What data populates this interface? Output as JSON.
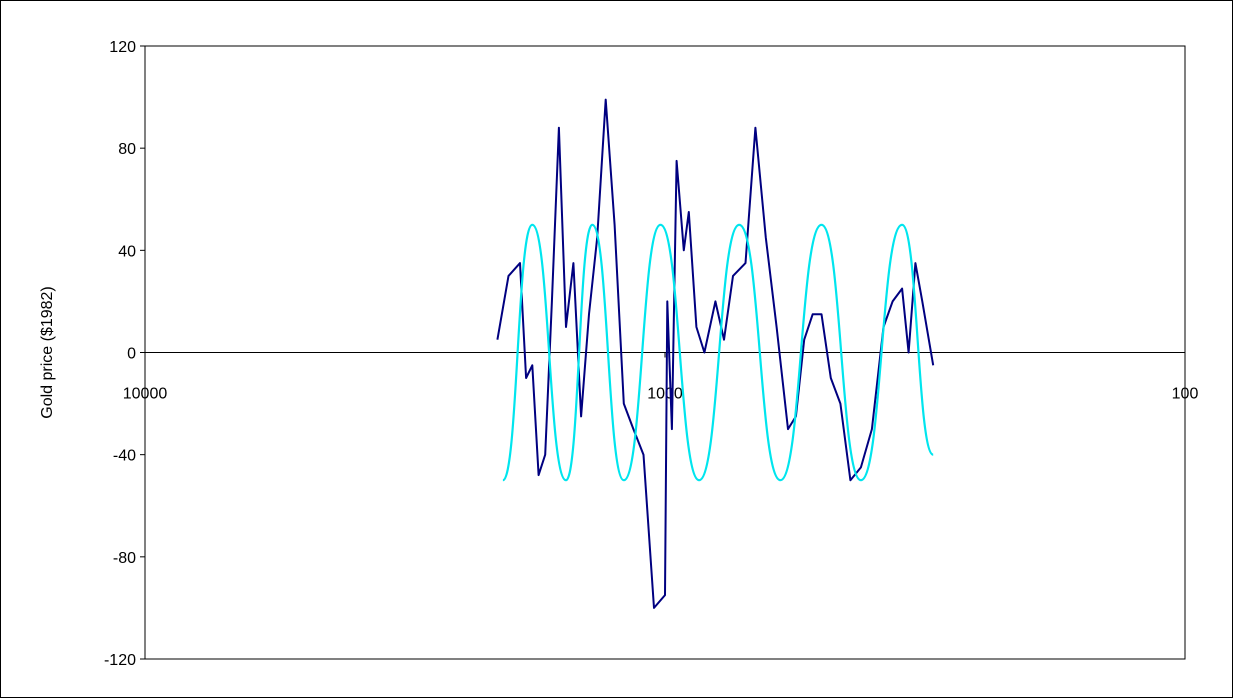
{
  "chart_data": {
    "type": "line",
    "title": "",
    "xlabel": "",
    "ylabel": "Gold price ($1982)",
    "x_axis": {
      "scale": "log",
      "reversed": true,
      "xlim": [
        10000,
        100
      ],
      "ticks": [
        10000,
        1000,
        100
      ]
    },
    "y_axis": {
      "ylim": [
        -120,
        120
      ],
      "ticks": [
        -120,
        -80,
        -40,
        0,
        40,
        80,
        120
      ]
    },
    "grid": false,
    "legend": "none",
    "colors": {
      "series_data": "#000080",
      "series_fit": "#00e5ee",
      "axis": "#000000"
    },
    "series": [
      {
        "x": [
          2100,
          2000,
          1900,
          1850,
          1800,
          1750,
          1700,
          1650,
          1600,
          1550,
          1500,
          1450,
          1400,
          1350,
          1300,
          1250,
          1200,
          1150,
          1100,
          1050,
          1000,
          990,
          970,
          950,
          920,
          900,
          870,
          840,
          800,
          770,
          740,
          700,
          670,
          640,
          610,
          580,
          560,
          540,
          520,
          500,
          480,
          460,
          440,
          420,
          400,
          380,
          365,
          350,
          340,
          330,
          320,
          305
        ],
        "y": [
          5,
          30,
          35,
          -10,
          -5,
          -48,
          -40,
          20,
          88,
          10,
          35,
          -25,
          15,
          45,
          99,
          50,
          -20,
          -30,
          -40,
          -100,
          -95,
          20,
          -30,
          75,
          40,
          55,
          10,
          0,
          20,
          5,
          30,
          35,
          88,
          45,
          10,
          -30,
          -25,
          5,
          15,
          15,
          -10,
          -20,
          -50,
          -45,
          -30,
          10,
          20,
          25,
          0,
          35,
          20,
          -5
        ]
      },
      {
        "x": [
          2050,
          1800,
          1550,
          1380,
          1200,
          1020,
          860,
          720,
          600,
          500,
          420,
          350,
          305
        ],
        "y": [
          -50,
          50,
          -50,
          50,
          -50,
          50,
          -50,
          50,
          -50,
          50,
          -50,
          50,
          -40
        ]
      }
    ]
  }
}
